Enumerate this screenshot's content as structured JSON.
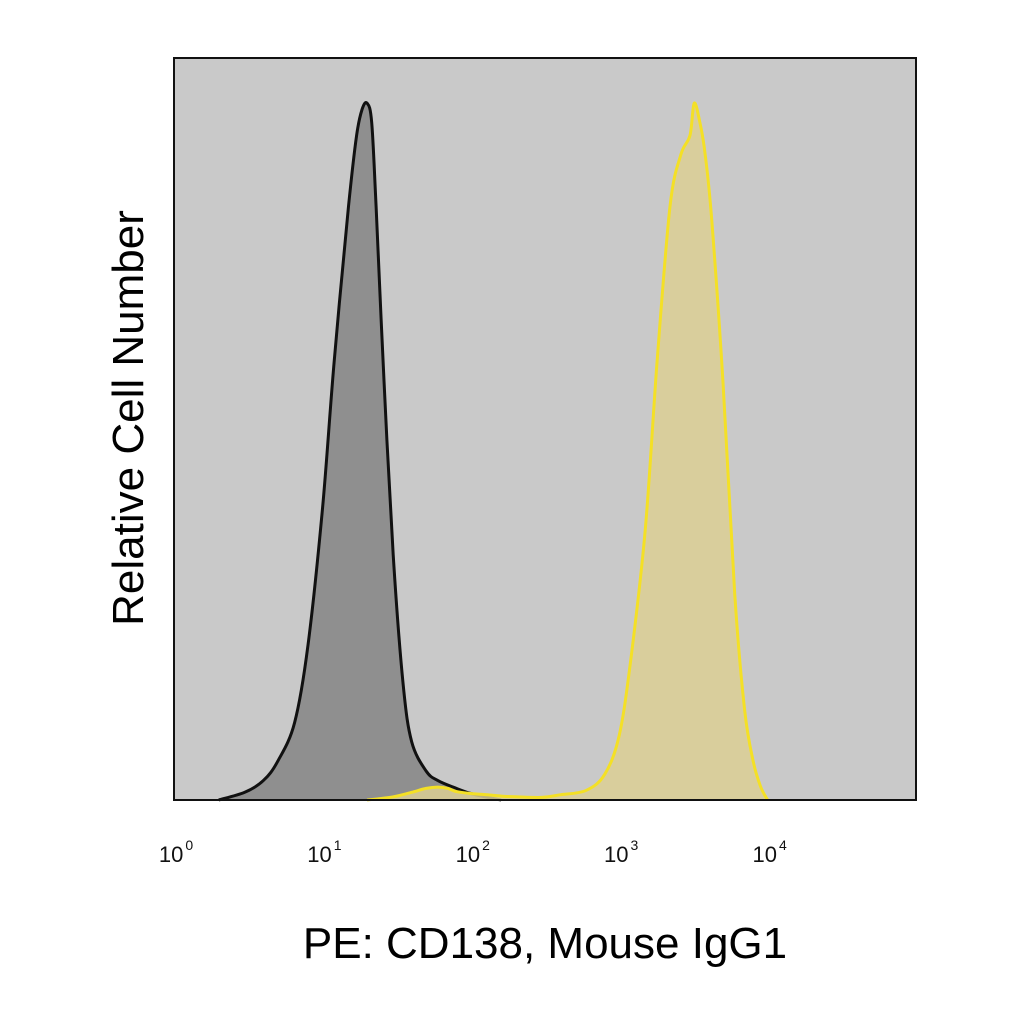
{
  "chart_data": {
    "type": "area",
    "xlabel": "PE: CD138, Mouse IgG1",
    "ylabel": "Relative Cell Number",
    "x_scale": "log",
    "xlim": [
      1,
      100000
    ],
    "ylim": [
      0,
      1.15
    ],
    "y_ticks_shown": false,
    "grid": false,
    "legend": "none",
    "x_ticks": [
      {
        "value": 1,
        "base": "10",
        "exp": "0"
      },
      {
        "value": 10,
        "base": "10",
        "exp": "1"
      },
      {
        "value": 100,
        "base": "10",
        "exp": "2"
      },
      {
        "value": 1000,
        "base": "10",
        "exp": "3"
      },
      {
        "value": 10000,
        "base": "10",
        "exp": "4"
      }
    ],
    "plot_background": "#c9c9c9",
    "series": [
      {
        "fill": "#8f8f8f",
        "stroke": "#111111",
        "x": [
          2,
          3,
          4,
          5,
          6.5,
          8,
          10,
          12,
          15,
          17,
          18.5,
          20,
          21.5,
          23,
          26,
          30,
          35,
          40,
          50,
          60,
          80,
          100,
          130,
          160
        ],
        "y": [
          0,
          0.012,
          0.03,
          0.06,
          0.12,
          0.24,
          0.45,
          0.68,
          0.92,
          1.03,
          1.07,
          1.08,
          1.05,
          0.92,
          0.65,
          0.38,
          0.18,
          0.09,
          0.045,
          0.03,
          0.018,
          0.01,
          0.004,
          0
        ]
      },
      {
        "fill": "#dccf94",
        "stroke": "#f4e026",
        "x": [
          20,
          30,
          40,
          50,
          60,
          70,
          80,
          100,
          130,
          160,
          200,
          300,
          400,
          600,
          800,
          1000,
          1200,
          1500,
          1800,
          2200,
          2600,
          3000,
          3200,
          3500,
          3800,
          4200,
          5000,
          6000,
          7000,
          8000,
          9000,
          10000
        ],
        "y": [
          0,
          0.005,
          0.012,
          0.018,
          0.02,
          0.018,
          0.013,
          0.01,
          0.008,
          0.006,
          0.005,
          0.004,
          0.008,
          0.015,
          0.04,
          0.1,
          0.22,
          0.42,
          0.68,
          0.92,
          1.0,
          1.03,
          1.08,
          1.05,
          1.0,
          0.9,
          0.65,
          0.32,
          0.14,
          0.06,
          0.02,
          0
        ]
      }
    ]
  }
}
